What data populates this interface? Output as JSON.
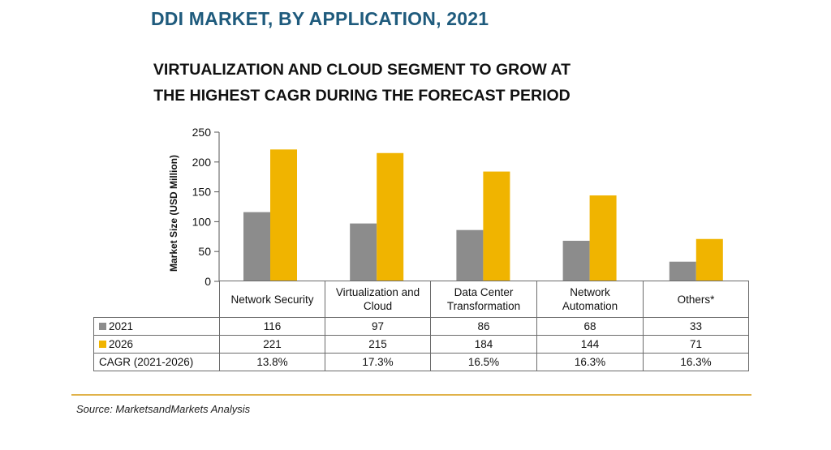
{
  "header": {
    "title": "DDI MARKET, BY APPLICATION, 2021",
    "subtitle_line1": "VIRTUALIZATION AND CLOUD SEGMENT TO GROW AT",
    "subtitle_line2": "THE HIGHEST CAGR DURING THE FORECAST PERIOD"
  },
  "chart_data": {
    "type": "bar",
    "ylabel": "Market Size (USD Million)",
    "xlabel": "",
    "ylim": [
      0,
      250
    ],
    "yticks": [
      0,
      50,
      100,
      150,
      200,
      250
    ],
    "categories": [
      "Network Security",
      "Virtualization and Cloud",
      "Data Center Transformation",
      "Network Automation",
      "Others*"
    ],
    "category_lines": [
      [
        "Network Security"
      ],
      [
        "Virtualization and",
        "Cloud"
      ],
      [
        "Data Center",
        "Transformation"
      ],
      [
        "Network",
        "Automation"
      ],
      [
        "Others*"
      ]
    ],
    "series": [
      {
        "name": "2021",
        "color": "#8c8c8c",
        "values": [
          116,
          97,
          86,
          68,
          33
        ]
      },
      {
        "name": "2026",
        "color": "#f0b400",
        "values": [
          221,
          215,
          184,
          144,
          71
        ]
      }
    ],
    "grid": false,
    "legend": "table rows below chart"
  },
  "table": {
    "rows": [
      {
        "label": "2021",
        "color": "#8c8c8c",
        "cells": [
          "116",
          "97",
          "86",
          "68",
          "33"
        ]
      },
      {
        "label": "2026",
        "color": "#f0b400",
        "cells": [
          "221",
          "215",
          "184",
          "144",
          "71"
        ]
      },
      {
        "label": "CAGR (2021-2026)",
        "color": "",
        "cells": [
          "13.8%",
          "17.3%",
          "16.5%",
          "16.3%",
          "16.3%"
        ]
      }
    ]
  },
  "footer": {
    "source": "Source: MarketsandMarkets Analysis"
  }
}
